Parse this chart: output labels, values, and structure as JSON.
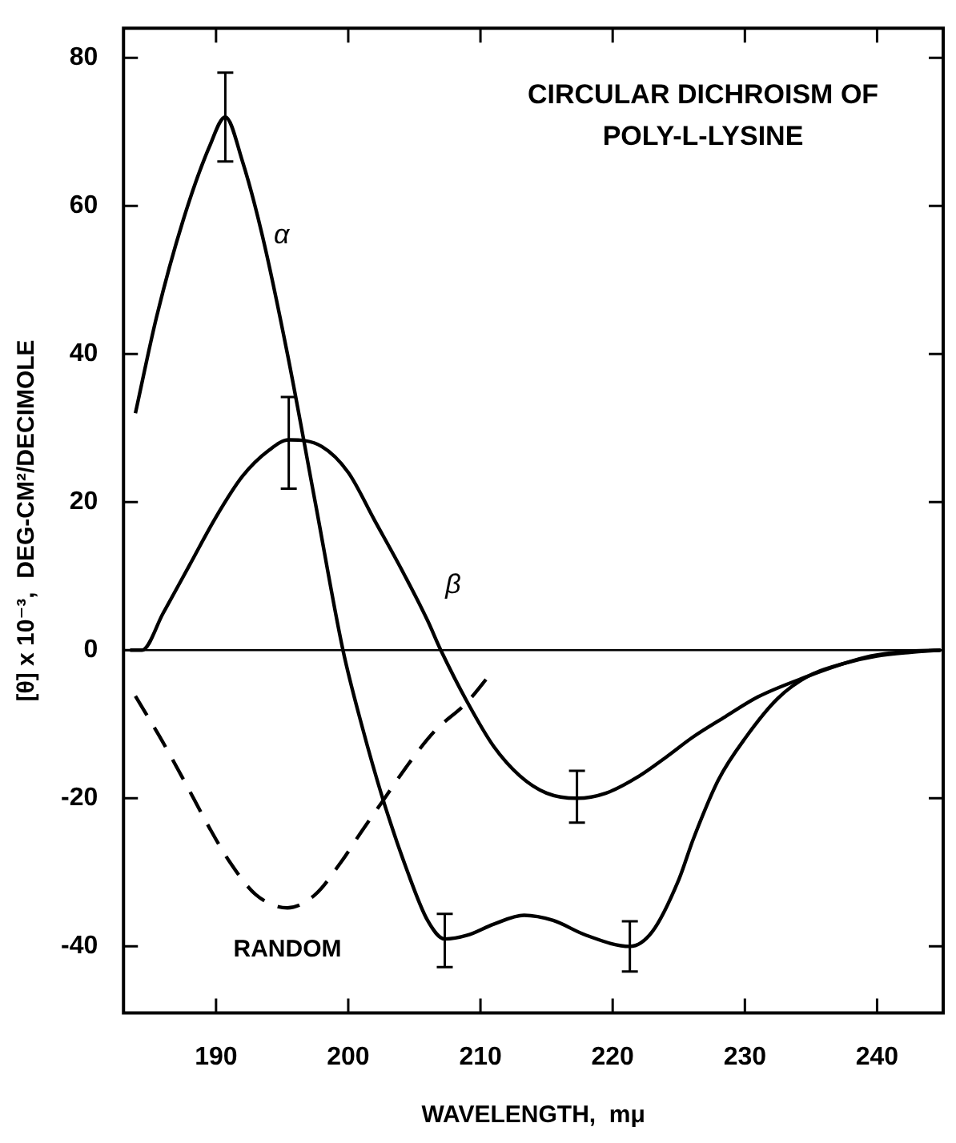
{
  "chart_data": {
    "type": "line",
    "title": "CIRCULAR DICHROISM OF POLY-L-LYSINE",
    "xlabel": "WAVELENGTH,  mμ",
    "ylabel": "[θ] x 10⁻³,  DEG-CM²/DECIMOLE",
    "xlim": [
      183,
      245
    ],
    "xticks": [
      190,
      200,
      210,
      220,
      230,
      240
    ],
    "ylim": [
      -49,
      84
    ],
    "yticks": [
      -40,
      -20,
      0,
      20,
      40,
      60,
      80
    ],
    "grid": false,
    "legend": false,
    "marker": "none",
    "series": [
      {
        "name": "α",
        "color": "#000000",
        "line_style": "solid",
        "x": [
          183.9,
          185.5,
          187.5,
          189.5,
          190.7,
          192,
          193.5,
          195.4,
          197.5,
          199.6,
          201,
          202.6,
          204.5,
          206,
          207.3,
          209,
          211,
          213.3,
          215.5,
          218,
          221.3,
          223,
          225,
          226.1,
          228,
          230.1,
          232.5,
          234.8,
          237.5,
          240,
          242.5,
          244.8
        ],
        "values": [
          32,
          45,
          58,
          68,
          72,
          66,
          56,
          40,
          20,
          0,
          -10,
          -20,
          -30,
          -36.5,
          -39,
          -38.5,
          -37,
          -35.8,
          -36.5,
          -38.5,
          -40,
          -38,
          -31,
          -25.5,
          -17.5,
          -11.7,
          -6.5,
          -3.5,
          -1.8,
          -0.8,
          -0.3,
          0
        ],
        "errors": [
          null,
          null,
          null,
          null,
          [
            66,
            78
          ],
          null,
          null,
          null,
          null,
          null,
          null,
          null,
          null,
          null,
          [
            -42.8,
            -35.6
          ],
          null,
          null,
          null,
          null,
          null,
          [
            -43.4,
            -36.6
          ],
          null,
          null,
          null,
          null,
          null,
          null,
          null,
          null,
          null,
          null,
          null
        ]
      },
      {
        "name": "β",
        "color": "#000000",
        "line_style": "solid",
        "x": [
          183.5,
          184.4,
          186,
          188,
          190,
          192,
          194,
          195.5,
          198,
          200,
          202,
          204,
          206,
          207,
          209,
          211,
          213,
          215,
          217.3,
          219.5,
          222,
          224,
          226.1,
          228.5,
          231,
          234.8,
          237.5,
          239.5,
          242,
          244.8
        ],
        "values": [
          0,
          0,
          5,
          11.5,
          18,
          23.5,
          27,
          28.4,
          27.5,
          24,
          17.5,
          11,
          4,
          0,
          -7,
          -13,
          -17,
          -19.3,
          -20,
          -19.3,
          -17,
          -14.5,
          -11.7,
          -9,
          -6.3,
          -3.5,
          -1.8,
          -0.8,
          -0.2,
          0
        ],
        "errors": [
          null,
          null,
          null,
          null,
          null,
          null,
          null,
          [
            21.8,
            34.2
          ],
          null,
          null,
          null,
          null,
          null,
          null,
          null,
          null,
          null,
          null,
          [
            -23.3,
            -16.3
          ],
          null,
          null,
          null,
          null,
          null,
          null,
          null,
          null,
          null,
          null,
          null
        ]
      },
      {
        "name": "RANDOM",
        "color": "#000000",
        "line_style": "dashed",
        "x": [
          183.9,
          186,
          188,
          189.5,
          191,
          193,
          195.4,
          197.5,
          199.5,
          201,
          202.6,
          204.5,
          206.5,
          209,
          210.8
        ],
        "values": [
          -6.2,
          -12.5,
          -19,
          -24,
          -28.5,
          -33,
          -34.8,
          -33,
          -28.5,
          -24.5,
          -20.4,
          -15.5,
          -11,
          -7,
          -3.1
        ]
      }
    ],
    "ref_lines": [
      {
        "axis": "y",
        "value": 0,
        "color": "#000000",
        "line_style": "solid"
      }
    ]
  }
}
